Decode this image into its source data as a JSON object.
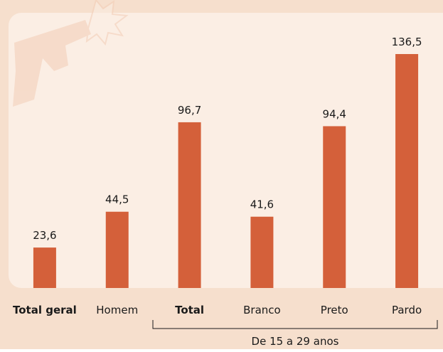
{
  "chart_data": {
    "type": "bar",
    "categories": [
      "Total geral",
      "Homem",
      "Total",
      "Branco",
      "Preto",
      "Pardo"
    ],
    "category_bold": [
      true,
      false,
      true,
      false,
      false,
      false
    ],
    "values": [
      23.6,
      44.5,
      96.7,
      41.6,
      94.4,
      136.5
    ],
    "value_labels": [
      "23,6",
      "44,5",
      "96,7",
      "41,6",
      "94,4",
      "136,5"
    ],
    "color": "#d4603a",
    "group_label": "De 15 a 29 anos"
  }
}
